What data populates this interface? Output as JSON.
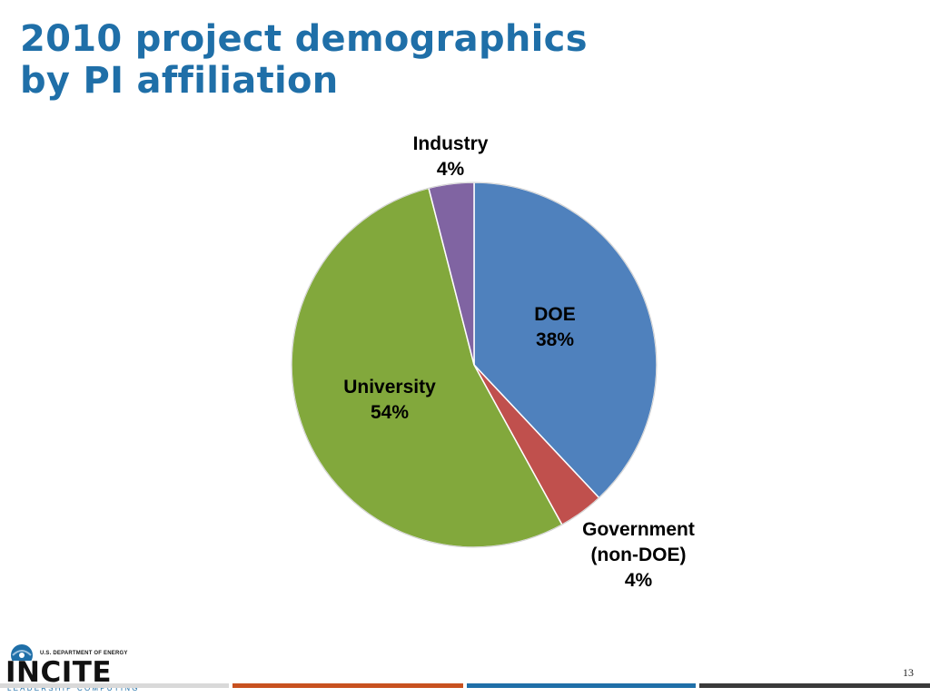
{
  "title": {
    "line1": "2010 project demographics",
    "line2": "by PI affiliation"
  },
  "chart_data": {
    "type": "pie",
    "start": "12 o'clock",
    "direction": "clockwise",
    "slices": [
      {
        "label_lines": [
          "DOE",
          "38%"
        ],
        "value": 38,
        "color": "#4f81bd",
        "label_position": "inside"
      },
      {
        "label_lines": [
          "Government",
          "(non-DOE)",
          "4%"
        ],
        "value": 4,
        "color": "#c0504d",
        "label_position": "outside"
      },
      {
        "label_lines": [
          "University",
          "54%"
        ],
        "value": 54,
        "color": "#82a83c",
        "label_position": "inside"
      },
      {
        "label_lines": [
          "Industry",
          "4%"
        ],
        "value": 4,
        "color": "#8064a2",
        "label_position": "outside"
      }
    ]
  },
  "footer": {
    "logo_dept": "U.S. DEPARTMENT OF ENERGY",
    "logo_word": "INCITE",
    "logo_sub": "LEADERSHIP COMPUTING",
    "page_number": "13",
    "bar_colors": [
      "#d9d9d9",
      "#c8511f",
      "#1f6fa8",
      "#3a3a3a"
    ]
  }
}
